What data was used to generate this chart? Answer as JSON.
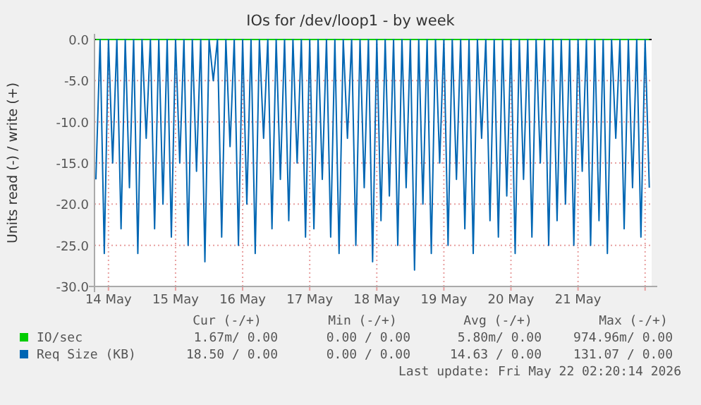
{
  "chart_data": {
    "type": "line",
    "title": "IOs for /dev/loop1 - by week",
    "ylabel": "Units read (-) / write (+)",
    "xlim": [
      "2026-05-13T19:00",
      "2026-05-22T02:20"
    ],
    "xticks": [
      {
        "value": "2026-05-14",
        "label": "14 May"
      },
      {
        "value": "2026-05-15",
        "label": "15 May"
      },
      {
        "value": "2026-05-16",
        "label": "16 May"
      },
      {
        "value": "2026-05-17",
        "label": "17 May"
      },
      {
        "value": "2026-05-18",
        "label": "18 May"
      },
      {
        "value": "2026-05-19",
        "label": "19 May"
      },
      {
        "value": "2026-05-20",
        "label": "20 May"
      },
      {
        "value": "2026-05-21",
        "label": "21 May"
      },
      {
        "value": "2026-05-22",
        "label": null
      }
    ],
    "ylim": [
      -30,
      0
    ],
    "yticks": [
      {
        "value": -30,
        "label": "-30.0"
      },
      {
        "value": -25,
        "label": "-25.0"
      },
      {
        "value": -20,
        "label": "-20.0"
      },
      {
        "value": -15,
        "label": "-15.0"
      },
      {
        "value": -10,
        "label": "-10.0"
      },
      {
        "value": -5,
        "label": "-5.0"
      },
      {
        "value": 0,
        "label": "0.0"
      }
    ],
    "grid": true,
    "legend": "bottom",
    "x": [
      "2026-05-13T19:30",
      "2026-05-13T21:00",
      "2026-05-13T22:30",
      "2026-05-14T00:00",
      "2026-05-14T01:30",
      "2026-05-14T03:00",
      "2026-05-14T04:30",
      "2026-05-14T06:00",
      "2026-05-14T07:30",
      "2026-05-14T09:00",
      "2026-05-14T10:30",
      "2026-05-14T12:00",
      "2026-05-14T13:30",
      "2026-05-14T15:00",
      "2026-05-14T16:30",
      "2026-05-14T18:00",
      "2026-05-14T19:30",
      "2026-05-14T21:00",
      "2026-05-14T22:30",
      "2026-05-15T00:00",
      "2026-05-15T01:30",
      "2026-05-15T03:00",
      "2026-05-15T04:30",
      "2026-05-15T06:00",
      "2026-05-15T07:30",
      "2026-05-15T09:00",
      "2026-05-15T10:30",
      "2026-05-15T12:00",
      "2026-05-15T13:30",
      "2026-05-15T15:00",
      "2026-05-15T16:30",
      "2026-05-15T18:00",
      "2026-05-15T19:30",
      "2026-05-15T21:00",
      "2026-05-15T22:30",
      "2026-05-16T00:00",
      "2026-05-16T01:30",
      "2026-05-16T03:00",
      "2026-05-16T04:30",
      "2026-05-16T06:00",
      "2026-05-16T07:30",
      "2026-05-16T09:00",
      "2026-05-16T10:30",
      "2026-05-16T12:00",
      "2026-05-16T13:30",
      "2026-05-16T15:00",
      "2026-05-16T16:30",
      "2026-05-16T18:00",
      "2026-05-16T19:30",
      "2026-05-16T21:00",
      "2026-05-16T22:30",
      "2026-05-17T00:00",
      "2026-05-17T01:30",
      "2026-05-17T03:00",
      "2026-05-17T04:30",
      "2026-05-17T06:00",
      "2026-05-17T07:30",
      "2026-05-17T09:00",
      "2026-05-17T10:30",
      "2026-05-17T12:00",
      "2026-05-17T13:30",
      "2026-05-17T15:00",
      "2026-05-17T16:30",
      "2026-05-17T18:00",
      "2026-05-17T19:30",
      "2026-05-17T21:00",
      "2026-05-17T22:30",
      "2026-05-18T00:00",
      "2026-05-18T01:30",
      "2026-05-18T03:00",
      "2026-05-18T04:30",
      "2026-05-18T06:00",
      "2026-05-18T07:30",
      "2026-05-18T09:00",
      "2026-05-18T10:30",
      "2026-05-18T12:00",
      "2026-05-18T13:30",
      "2026-05-18T15:00",
      "2026-05-18T16:30",
      "2026-05-18T18:00",
      "2026-05-18T19:30",
      "2026-05-18T21:00",
      "2026-05-18T22:30",
      "2026-05-19T00:00",
      "2026-05-19T01:30",
      "2026-05-19T03:00",
      "2026-05-19T04:30",
      "2026-05-19T06:00",
      "2026-05-19T07:30",
      "2026-05-19T09:00",
      "2026-05-19T10:30",
      "2026-05-19T12:00",
      "2026-05-19T13:30",
      "2026-05-19T15:00",
      "2026-05-19T16:30",
      "2026-05-19T18:00",
      "2026-05-19T19:30",
      "2026-05-19T21:00",
      "2026-05-19T22:30",
      "2026-05-20T00:00",
      "2026-05-20T01:30",
      "2026-05-20T03:00",
      "2026-05-20T04:30",
      "2026-05-20T06:00",
      "2026-05-20T07:30",
      "2026-05-20T09:00",
      "2026-05-20T10:30",
      "2026-05-20T12:00",
      "2026-05-20T13:30",
      "2026-05-20T15:00",
      "2026-05-20T16:30",
      "2026-05-20T18:00",
      "2026-05-20T19:30",
      "2026-05-20T21:00",
      "2026-05-20T22:30",
      "2026-05-21T00:00",
      "2026-05-21T01:30",
      "2026-05-21T03:00",
      "2026-05-21T04:30",
      "2026-05-21T06:00",
      "2026-05-21T07:30",
      "2026-05-21T09:00",
      "2026-05-21T10:30",
      "2026-05-21T12:00",
      "2026-05-21T13:30",
      "2026-05-21T15:00",
      "2026-05-21T16:30",
      "2026-05-21T18:00",
      "2026-05-21T19:30",
      "2026-05-21T21:00",
      "2026-05-21T22:30",
      "2026-05-22T00:00",
      "2026-05-22T01:30"
    ],
    "series": [
      {
        "name": "IO/sec",
        "color": "#00cc00",
        "x": [
          "2026-05-13T19:30",
          "2026-05-22T01:30"
        ],
        "values": [
          0,
          0
        ]
      },
      {
        "name": "Req Size (KB)",
        "color": "#0066b3",
        "values": [
          -17,
          0,
          -26,
          0,
          -15,
          0,
          -23,
          0,
          -18,
          0,
          -26,
          0,
          -12,
          0,
          -23,
          0,
          -20,
          0,
          -24,
          0,
          -15,
          0,
          -25,
          0,
          -16,
          0,
          -27,
          0,
          -5,
          0,
          -24,
          0,
          -13,
          0,
          -25,
          0,
          -20,
          0,
          -26,
          0,
          -12,
          0,
          -23,
          0,
          -17,
          0,
          -22,
          0,
          -15,
          0,
          -24,
          0,
          -23,
          0,
          -17,
          0,
          -24,
          0,
          -26,
          0,
          -12,
          0,
          -25,
          0,
          -18,
          0,
          -27,
          0,
          -22,
          0,
          -19,
          0,
          -25,
          0,
          -18,
          0,
          -28,
          0,
          -20,
          0,
          -26,
          0,
          -15,
          0,
          -25,
          0,
          -17,
          0,
          -23,
          0,
          -26,
          0,
          -12,
          0,
          -22,
          0,
          -24,
          0,
          -19,
          0,
          -26,
          0,
          -17,
          0,
          -24,
          0,
          -15,
          0,
          -25,
          0,
          -22,
          0,
          -20,
          0,
          -25,
          0,
          -16,
          0,
          -25,
          0,
          -22,
          0,
          -26,
          0,
          -12,
          0,
          -23,
          0,
          -18,
          0,
          -24,
          0,
          -18
        ]
      }
    ],
    "annotations": [
      "Cur (-/+)",
      "Min (-/+)",
      "Avg (-/+)",
      "Max (-/+)",
      "1.67m/ 0.00",
      "0.00 / 0.00",
      "5.80m/ 0.00",
      "974.96m/ 0.00",
      "18.50 / 0.00",
      "0.00 / 0.00",
      "14.63 / 0.00",
      "131.07 / 0.00",
      "Last update: Fri May 22 02:20:14 2026"
    ]
  }
}
